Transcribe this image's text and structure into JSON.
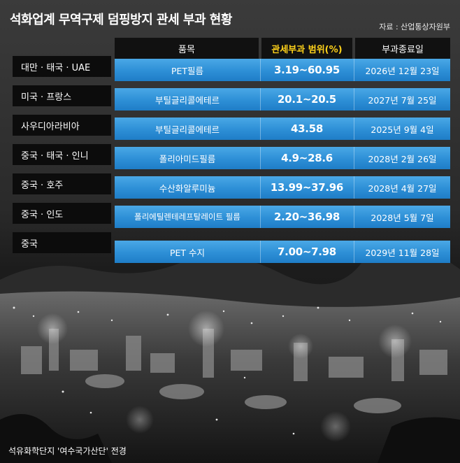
{
  "header": {
    "title": "석화업계 무역구제 덤핑방지 관세 부과 현황",
    "source": "자료 : 산업통상자원부"
  },
  "table": {
    "columns": [
      "품목",
      "관세부과 범위(%)",
      "부과종료일"
    ],
    "rows": [
      {
        "country": "대만 · 태국 · UAE",
        "item": "PET필름",
        "rate": "3.19~60.95",
        "end_date": "2026년 12월 23일"
      },
      {
        "country": "미국 · 프랑스",
        "item": "부틸글리콜에테르",
        "rate": "20.1~20.5",
        "end_date": "2027년 7월 25일"
      },
      {
        "country": "사우디아라비아",
        "item": "부틸글리콜에테르",
        "rate": "43.58",
        "end_date": "2025년 9월 4일"
      },
      {
        "country": "중국 · 태국 · 인니",
        "item": "폴리아미드필름",
        "rate": "4.9~28.6",
        "end_date": "2028년 2월 26일"
      },
      {
        "country": "중국 · 호주",
        "item": "수산화알루미늄",
        "rate": "13.99~37.96",
        "end_date": "2028년 4월 27일"
      },
      {
        "country": "중국 · 인도",
        "item": "폴리에틸렌테레프탈레이트 필름",
        "rate": "2.20~36.98",
        "end_date": "2028년 5월 7일"
      },
      {
        "country": "중국",
        "item": "PET 수지",
        "rate": "7.00~7.98",
        "end_date": "2029년 11월 28일"
      }
    ]
  },
  "photo_caption": "석유화학단지 '여수국가산단' 전경",
  "colors": {
    "band": "#2d8fd6",
    "highlight": "#ffd21a",
    "label_bg": "#0c0c0c"
  }
}
